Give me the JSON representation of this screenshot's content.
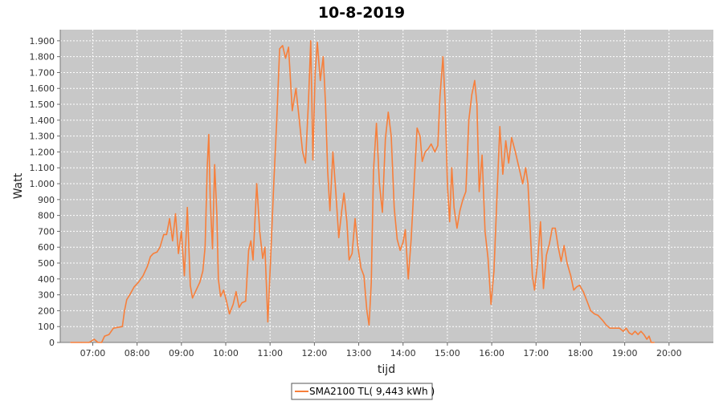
{
  "chart_data": {
    "type": "line",
    "title": "10-8-2019",
    "xlabel": "tijd",
    "ylabel": "Watt",
    "x_range": [
      "06:16",
      "21:00"
    ],
    "ylim": [
      0,
      1970
    ],
    "yticks": [
      0,
      100,
      200,
      300,
      400,
      500,
      600,
      700,
      800,
      900,
      1000,
      1100,
      1200,
      1300,
      1400,
      1500,
      1600,
      1700,
      1800,
      1900
    ],
    "ytick_labels": [
      "0",
      "100",
      "200",
      "300",
      "400",
      "500",
      "600",
      "700",
      "800",
      "900",
      "1.000",
      "1.100",
      "1.200",
      "1.300",
      "1.400",
      "1.500",
      "1.600",
      "1.700",
      "1.800",
      "1.900"
    ],
    "xtick_labels": [
      "07:00",
      "08:00",
      "09:00",
      "10:00",
      "11:00",
      "12:00",
      "13:00",
      "14:00",
      "15:00",
      "16:00",
      "17:00",
      "18:00",
      "19:00",
      "20:00"
    ],
    "grid": true,
    "legend": "bottom-center",
    "plot_background": "#c8c8c8",
    "series": [
      {
        "name": "SMA2100 TL( 9,443 kWh )",
        "color": "#f77f3b",
        "points": [
          [
            "06:30",
            0
          ],
          [
            "06:45",
            0
          ],
          [
            "06:55",
            0
          ],
          [
            "07:02",
            20
          ],
          [
            "07:07",
            0
          ],
          [
            "07:12",
            0
          ],
          [
            "07:16",
            40
          ],
          [
            "07:22",
            50
          ],
          [
            "07:28",
            90
          ],
          [
            "07:34",
            95
          ],
          [
            "07:40",
            100
          ],
          [
            "07:43",
            200
          ],
          [
            "07:46",
            270
          ],
          [
            "07:50",
            300
          ],
          [
            "07:56",
            350
          ],
          [
            "08:02",
            380
          ],
          [
            "08:08",
            420
          ],
          [
            "08:14",
            480
          ],
          [
            "08:18",
            540
          ],
          [
            "08:22",
            560
          ],
          [
            "08:27",
            570
          ],
          [
            "08:31",
            600
          ],
          [
            "08:36",
            680
          ],
          [
            "08:40",
            680
          ],
          [
            "08:44",
            780
          ],
          [
            "08:48",
            640
          ],
          [
            "08:52",
            810
          ],
          [
            "08:56",
            560
          ],
          [
            "09:00",
            700
          ],
          [
            "09:04",
            420
          ],
          [
            "09:08",
            850
          ],
          [
            "09:12",
            360
          ],
          [
            "09:15",
            280
          ],
          [
            "09:20",
            330
          ],
          [
            "09:25",
            380
          ],
          [
            "09:29",
            450
          ],
          [
            "09:32",
            600
          ],
          [
            "09:35",
            1110
          ],
          [
            "09:37",
            1310
          ],
          [
            "09:39",
            900
          ],
          [
            "09:42",
            590
          ],
          [
            "09:45",
            1120
          ],
          [
            "09:48",
            800
          ],
          [
            "09:50",
            400
          ],
          [
            "09:53",
            290
          ],
          [
            "09:57",
            330
          ],
          [
            "10:01",
            260
          ],
          [
            "10:05",
            180
          ],
          [
            "10:10",
            240
          ],
          [
            "10:14",
            320
          ],
          [
            "10:18",
            220
          ],
          [
            "10:22",
            250
          ],
          [
            "10:27",
            260
          ],
          [
            "10:31",
            580
          ],
          [
            "10:34",
            640
          ],
          [
            "10:37",
            520
          ],
          [
            "10:42",
            1000
          ],
          [
            "10:46",
            700
          ],
          [
            "10:50",
            530
          ],
          [
            "10:53",
            600
          ],
          [
            "10:57",
            130
          ],
          [
            "11:00",
            450
          ],
          [
            "11:05",
            1000
          ],
          [
            "11:09",
            1400
          ],
          [
            "11:13",
            1850
          ],
          [
            "11:17",
            1870
          ],
          [
            "11:21",
            1790
          ],
          [
            "11:25",
            1860
          ],
          [
            "11:30",
            1460
          ],
          [
            "11:35",
            1600
          ],
          [
            "11:40",
            1380
          ],
          [
            "11:44",
            1200
          ],
          [
            "11:48",
            1130
          ],
          [
            "11:52",
            1520
          ],
          [
            "11:55",
            1900
          ],
          [
            "11:58",
            1150
          ],
          [
            "12:01",
            1700
          ],
          [
            "12:04",
            1890
          ],
          [
            "12:08",
            1650
          ],
          [
            "12:12",
            1800
          ],
          [
            "12:15",
            1500
          ],
          [
            "12:18",
            1080
          ],
          [
            "12:21",
            830
          ],
          [
            "12:25",
            1200
          ],
          [
            "12:29",
            950
          ],
          [
            "12:33",
            660
          ],
          [
            "12:37",
            830
          ],
          [
            "12:40",
            940
          ],
          [
            "12:44",
            760
          ],
          [
            "12:47",
            520
          ],
          [
            "12:51",
            560
          ],
          [
            "12:55",
            780
          ],
          [
            "12:59",
            600
          ],
          [
            "13:03",
            470
          ],
          [
            "13:07",
            420
          ],
          [
            "13:11",
            200
          ],
          [
            "13:14",
            110
          ],
          [
            "13:17",
            380
          ],
          [
            "13:20",
            1080
          ],
          [
            "13:24",
            1380
          ],
          [
            "13:28",
            1000
          ],
          [
            "13:32",
            820
          ],
          [
            "13:36",
            1280
          ],
          [
            "13:40",
            1450
          ],
          [
            "13:44",
            1300
          ],
          [
            "13:48",
            850
          ],
          [
            "13:52",
            650
          ],
          [
            "13:56",
            580
          ],
          [
            "14:00",
            630
          ],
          [
            "14:03",
            710
          ],
          [
            "14:07",
            400
          ],
          [
            "14:11",
            650
          ],
          [
            "14:15",
            1000
          ],
          [
            "14:19",
            1350
          ],
          [
            "14:23",
            1300
          ],
          [
            "14:26",
            1140
          ],
          [
            "14:30",
            1200
          ],
          [
            "14:34",
            1220
          ],
          [
            "14:38",
            1250
          ],
          [
            "14:43",
            1200
          ],
          [
            "14:47",
            1240
          ],
          [
            "14:50",
            1550
          ],
          [
            "14:54",
            1800
          ],
          [
            "14:57",
            1500
          ],
          [
            "15:00",
            1000
          ],
          [
            "15:03",
            760
          ],
          [
            "15:06",
            1100
          ],
          [
            "15:09",
            850
          ],
          [
            "15:13",
            720
          ],
          [
            "15:17",
            830
          ],
          [
            "15:21",
            900
          ],
          [
            "15:25",
            950
          ],
          [
            "15:29",
            1400
          ],
          [
            "15:33",
            1560
          ],
          [
            "15:37",
            1650
          ],
          [
            "15:40",
            1500
          ],
          [
            "15:43",
            950
          ],
          [
            "15:47",
            1180
          ],
          [
            "15:51",
            700
          ],
          [
            "15:55",
            530
          ],
          [
            "15:59",
            240
          ],
          [
            "16:03",
            450
          ],
          [
            "16:07",
            900
          ],
          [
            "16:11",
            1360
          ],
          [
            "16:15",
            1060
          ],
          [
            "16:19",
            1270
          ],
          [
            "16:23",
            1130
          ],
          [
            "16:27",
            1290
          ],
          [
            "16:32",
            1200
          ],
          [
            "16:37",
            1100
          ],
          [
            "16:42",
            1000
          ],
          [
            "16:46",
            1100
          ],
          [
            "16:49",
            1000
          ],
          [
            "16:52",
            730
          ],
          [
            "16:55",
            420
          ],
          [
            "16:58",
            330
          ],
          [
            "17:02",
            500
          ],
          [
            "17:06",
            760
          ],
          [
            "17:10",
            340
          ],
          [
            "17:14",
            550
          ],
          [
            "17:18",
            620
          ],
          [
            "17:22",
            720
          ],
          [
            "17:26",
            720
          ],
          [
            "17:30",
            600
          ],
          [
            "17:34",
            510
          ],
          [
            "17:38",
            610
          ],
          [
            "17:42",
            500
          ],
          [
            "17:47",
            420
          ],
          [
            "17:51",
            330
          ],
          [
            "17:55",
            350
          ],
          [
            "17:59",
            360
          ],
          [
            "18:04",
            320
          ],
          [
            "18:09",
            260
          ],
          [
            "18:14",
            200
          ],
          [
            "18:19",
            180
          ],
          [
            "18:24",
            170
          ],
          [
            "18:30",
            140
          ],
          [
            "18:35",
            110
          ],
          [
            "18:40",
            90
          ],
          [
            "18:47",
            90
          ],
          [
            "18:53",
            90
          ],
          [
            "18:58",
            70
          ],
          [
            "19:02",
            90
          ],
          [
            "19:06",
            60
          ],
          [
            "19:10",
            50
          ],
          [
            "19:14",
            70
          ],
          [
            "19:18",
            50
          ],
          [
            "19:22",
            70
          ],
          [
            "19:26",
            50
          ],
          [
            "19:30",
            20
          ],
          [
            "19:33",
            40
          ],
          [
            "19:36",
            0
          ],
          [
            "19:40",
            0
          ]
        ]
      }
    ]
  }
}
